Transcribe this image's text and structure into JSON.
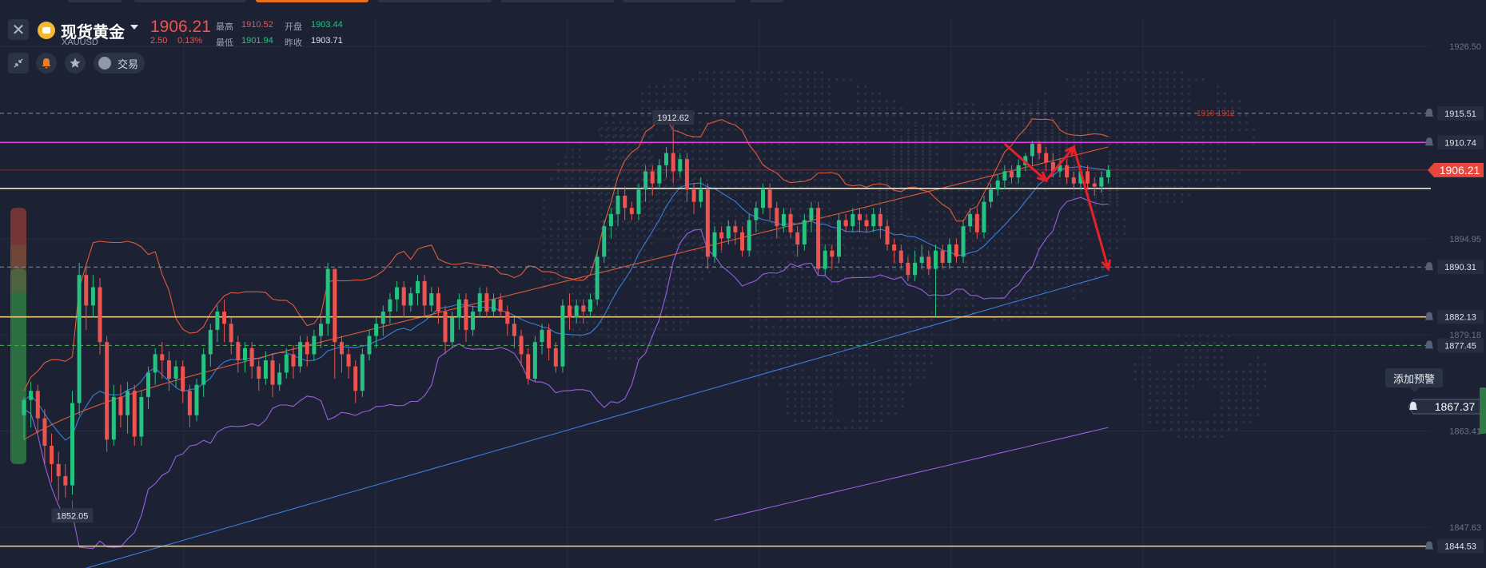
{
  "header": {
    "name": "现货黄金",
    "code": "XAUUSD",
    "price": "1906.21",
    "change": "2.50",
    "change_pct": "0.13%",
    "high_label": "最高",
    "high": "1910.52",
    "open_label": "开盘",
    "open": "1903.44",
    "low_label": "最低",
    "low": "1901.94",
    "prev_close_label": "昨收",
    "prev_close": "1903.71",
    "trade_label": "交易"
  },
  "alert": {
    "label": "添加预警",
    "price": "1867.37"
  },
  "colors": {
    "up": "#26c281",
    "down": "#ef5350",
    "magenta": "#e040e0",
    "gold": "#f3c77a",
    "cream": "#f0e6b8",
    "ma_red": "#e05a3c",
    "ma_blue": "#3d7dd8",
    "ma_purple": "#9a5fe0",
    "bg": "#1c2233"
  },
  "chart_data": {
    "type": "candlestick",
    "symbol": "XAUUSD",
    "ylim": [
      1840,
      1930
    ],
    "y_ticks": [
      "1926.50",
      "1894.95",
      "1879.18",
      "1863.41",
      "1847.63"
    ],
    "price_lines": [
      {
        "value": 1915.51,
        "label": "1915.51",
        "style": "dashed",
        "color": "#8a90a0",
        "alert": true
      },
      {
        "value": 1910.74,
        "label": "1910.74",
        "style": "solid",
        "color": "#e040e0",
        "alert": true
      },
      {
        "value": 1906.21,
        "label": "1906.21",
        "style": "solid",
        "color": "#ef5350",
        "alert": false,
        "current": true
      },
      {
        "value": 1903.2,
        "label": "",
        "style": "solid",
        "color": "#f0e6b8",
        "alert": false
      },
      {
        "value": 1890.31,
        "label": "1890.31",
        "style": "dashed",
        "color": "#8a90a0",
        "alert": true
      },
      {
        "value": 1882.13,
        "label": "1882.13",
        "style": "solid",
        "color": "#f3c77a",
        "alert": true
      },
      {
        "value": 1877.45,
        "label": "1877.45",
        "style": "dashed",
        "color": "#4caf50",
        "alert": true
      },
      {
        "value": 1844.53,
        "label": "1844.53",
        "style": "solid",
        "color": "#f3c77a",
        "alert": true
      }
    ],
    "annotations": [
      {
        "type": "price_tag",
        "label": "1912.62",
        "value": 1912.62,
        "bar": 94
      },
      {
        "type": "price_tag",
        "label": "1852.05",
        "value": 1852.05,
        "bar": 7
      },
      {
        "type": "zone_label",
        "label": "1910-1912",
        "value": 1915.5
      }
    ],
    "candles": [
      [
        1866.0,
        1868.5,
        1862.0,
        1869.0
      ],
      [
        1868.5,
        1870.0,
        1864.0,
        1871.5
      ],
      [
        1870.0,
        1865.5,
        1863.0,
        1871.0
      ],
      [
        1865.5,
        1861.0,
        1858.0,
        1867.0
      ],
      [
        1861.0,
        1858.0,
        1855.0,
        1863.0
      ],
      [
        1858.0,
        1856.0,
        1852.05,
        1860.0
      ],
      [
        1856.0,
        1854.5,
        1852.5,
        1858.0
      ],
      [
        1854.5,
        1868.0,
        1853.0,
        1870.0
      ],
      [
        1868.0,
        1889.0,
        1866.0,
        1891.0
      ],
      [
        1889.0,
        1884.0,
        1880.0,
        1890.5
      ],
      [
        1884.0,
        1887.0,
        1882.0,
        1889.0
      ],
      [
        1887.0,
        1878.0,
        1876.0,
        1888.5
      ],
      [
        1878.0,
        1862.0,
        1860.0,
        1879.0
      ],
      [
        1862.0,
        1869.0,
        1861.0,
        1871.0
      ],
      [
        1869.0,
        1866.0,
        1864.0,
        1871.0
      ],
      [
        1866.0,
        1870.0,
        1863.0,
        1871.5
      ],
      [
        1870.0,
        1862.5,
        1861.0,
        1871.0
      ],
      [
        1862.5,
        1869.0,
        1861.0,
        1870.0
      ],
      [
        1869.0,
        1873.0,
        1867.0,
        1874.0
      ],
      [
        1873.0,
        1876.0,
        1871.0,
        1877.0
      ],
      [
        1876.0,
        1875.0,
        1872.0,
        1878.0
      ],
      [
        1875.0,
        1872.0,
        1870.0,
        1876.5
      ],
      [
        1872.0,
        1874.0,
        1870.5,
        1875.0
      ],
      [
        1874.0,
        1870.0,
        1868.0,
        1875.0
      ],
      [
        1870.0,
        1866.0,
        1864.0,
        1871.0
      ],
      [
        1866.0,
        1871.0,
        1865.0,
        1872.0
      ],
      [
        1871.0,
        1876.0,
        1869.0,
        1877.0
      ],
      [
        1876.0,
        1880.0,
        1874.0,
        1881.0
      ],
      [
        1880.0,
        1883.0,
        1878.0,
        1884.0
      ],
      [
        1883.0,
        1881.0,
        1878.0,
        1885.0
      ],
      [
        1881.0,
        1878.0,
        1876.0,
        1882.0
      ],
      [
        1878.0,
        1875.0,
        1873.0,
        1879.0
      ],
      [
        1875.0,
        1877.0,
        1873.0,
        1878.0
      ],
      [
        1877.0,
        1874.0,
        1872.0,
        1878.0
      ],
      [
        1874.0,
        1872.0,
        1870.0,
        1875.0
      ],
      [
        1872.0,
        1875.0,
        1871.0,
        1876.5
      ],
      [
        1875.0,
        1871.0,
        1869.0,
        1876.0
      ],
      [
        1871.0,
        1873.0,
        1870.0,
        1874.5
      ],
      [
        1873.0,
        1876.0,
        1872.0,
        1877.0
      ],
      [
        1876.0,
        1874.0,
        1872.0,
        1877.5
      ],
      [
        1874.0,
        1878.0,
        1873.0,
        1879.0
      ],
      [
        1878.0,
        1876.0,
        1874.0,
        1879.0
      ],
      [
        1876.0,
        1879.0,
        1875.0,
        1880.0
      ],
      [
        1879.0,
        1881.0,
        1877.0,
        1882.0
      ],
      [
        1881.0,
        1890.0,
        1879.0,
        1891.0
      ],
      [
        1890.0,
        1878.0,
        1872.0,
        1890.0
      ],
      [
        1878.0,
        1876.0,
        1873.0,
        1879.0
      ],
      [
        1876.0,
        1874.0,
        1872.0,
        1877.0
      ],
      [
        1874.0,
        1870.0,
        1868.0,
        1875.0
      ],
      [
        1870.0,
        1876.0,
        1869.0,
        1877.0
      ],
      [
        1876.0,
        1879.0,
        1875.0,
        1880.0
      ],
      [
        1879.0,
        1881.0,
        1877.0,
        1882.0
      ],
      [
        1881.0,
        1883.0,
        1879.0,
        1884.0
      ],
      [
        1883.0,
        1885.0,
        1881.0,
        1886.0
      ],
      [
        1885.0,
        1887.0,
        1883.0,
        1888.0
      ],
      [
        1887.0,
        1884.0,
        1882.0,
        1888.0
      ],
      [
        1884.0,
        1886.0,
        1883.0,
        1887.0
      ],
      [
        1886.0,
        1888.0,
        1884.0,
        1889.0
      ],
      [
        1888.0,
        1884.0,
        1882.0,
        1889.0
      ],
      [
        1884.0,
        1886.0,
        1883.0,
        1887.0
      ],
      [
        1886.0,
        1883.0,
        1881.0,
        1887.0
      ],
      [
        1883.0,
        1878.0,
        1876.0,
        1884.0
      ],
      [
        1878.0,
        1882.0,
        1877.0,
        1883.0
      ],
      [
        1882.0,
        1885.0,
        1880.0,
        1886.0
      ],
      [
        1885.0,
        1880.0,
        1878.0,
        1886.0
      ],
      [
        1880.0,
        1883.0,
        1879.0,
        1884.0
      ],
      [
        1883.0,
        1886.0,
        1882.0,
        1887.0
      ],
      [
        1886.0,
        1883.0,
        1882.0,
        1887.0
      ],
      [
        1883.0,
        1885.0,
        1882.0,
        1886.0
      ],
      [
        1885.0,
        1883.0,
        1882.0,
        1886.0
      ],
      [
        1883.0,
        1881.0,
        1879.0,
        1884.0
      ],
      [
        1881.0,
        1879.0,
        1877.0,
        1882.0
      ],
      [
        1879.0,
        1876.0,
        1874.0,
        1880.0
      ],
      [
        1876.0,
        1872.0,
        1871.0,
        1877.0
      ],
      [
        1872.0,
        1878.0,
        1871.5,
        1879.0
      ],
      [
        1878.0,
        1880.0,
        1876.0,
        1881.0
      ],
      [
        1880.0,
        1877.0,
        1875.0,
        1881.0
      ],
      [
        1877.0,
        1874.0,
        1873.0,
        1878.0
      ],
      [
        1874.0,
        1884.0,
        1873.0,
        1885.0
      ],
      [
        1884.0,
        1882.0,
        1880.0,
        1886.0
      ],
      [
        1882.0,
        1884.0,
        1881.0,
        1885.0
      ],
      [
        1884.0,
        1883.0,
        1881.0,
        1885.0
      ],
      [
        1883.0,
        1885.0,
        1882.0,
        1886.0
      ],
      [
        1885.0,
        1892.0,
        1884.0,
        1893.0
      ],
      [
        1892.0,
        1897.0,
        1891.0,
        1898.0
      ],
      [
        1897.0,
        1899.0,
        1895.0,
        1900.0
      ],
      [
        1899.0,
        1902.0,
        1897.0,
        1903.0
      ],
      [
        1902.0,
        1900.0,
        1898.0,
        1903.5
      ],
      [
        1900.0,
        1899.0,
        1898.0,
        1901.0
      ],
      [
        1899.0,
        1903.0,
        1898.0,
        1904.0
      ],
      [
        1903.0,
        1906.0,
        1901.0,
        1907.0
      ],
      [
        1906.0,
        1904.0,
        1902.0,
        1907.0
      ],
      [
        1904.0,
        1907.0,
        1903.0,
        1908.0
      ],
      [
        1907.0,
        1909.0,
        1905.0,
        1910.0
      ],
      [
        1909.0,
        1906.0,
        1904.0,
        1912.62
      ],
      [
        1906.0,
        1908.0,
        1905.0,
        1909.0
      ],
      [
        1908.0,
        1903.0,
        1901.0,
        1909.0
      ],
      [
        1903.0,
        1901.0,
        1899.0,
        1904.0
      ],
      [
        1901.0,
        1903.0,
        1900.0,
        1905.0
      ],
      [
        1903.0,
        1892.0,
        1890.0,
        1904.0
      ],
      [
        1892.0,
        1896.0,
        1891.0,
        1897.0
      ],
      [
        1896.0,
        1895.0,
        1893.0,
        1897.0
      ],
      [
        1895.0,
        1897.0,
        1894.0,
        1898.0
      ],
      [
        1897.0,
        1896.0,
        1894.0,
        1898.0
      ],
      [
        1896.0,
        1893.0,
        1892.0,
        1897.0
      ],
      [
        1893.0,
        1898.0,
        1892.0,
        1899.0
      ],
      [
        1898.0,
        1900.0,
        1896.0,
        1901.0
      ],
      [
        1900.0,
        1903.0,
        1899.0,
        1904.0
      ],
      [
        1903.0,
        1900.0,
        1898.0,
        1904.0
      ],
      [
        1900.0,
        1897.0,
        1895.0,
        1901.0
      ],
      [
        1897.0,
        1899.0,
        1896.0,
        1900.0
      ],
      [
        1899.0,
        1896.0,
        1895.0,
        1900.0
      ],
      [
        1896.0,
        1894.0,
        1892.0,
        1897.0
      ],
      [
        1894.0,
        1898.0,
        1893.0,
        1899.0
      ],
      [
        1898.0,
        1900.0,
        1896.0,
        1901.0
      ],
      [
        1900.0,
        1890.0,
        1889.0,
        1901.0
      ],
      [
        1890.0,
        1893.0,
        1889.0,
        1894.0
      ],
      [
        1893.0,
        1892.0,
        1890.0,
        1894.0
      ],
      [
        1892.0,
        1898.0,
        1891.0,
        1899.0
      ],
      [
        1898.0,
        1897.0,
        1896.0,
        1899.0
      ],
      [
        1897.0,
        1899.0,
        1896.0,
        1900.0
      ],
      [
        1899.0,
        1898.0,
        1896.0,
        1900.0
      ],
      [
        1898.0,
        1897.0,
        1896.0,
        1899.0
      ],
      [
        1897.0,
        1899.0,
        1896.0,
        1900.0
      ],
      [
        1899.0,
        1897.0,
        1895.0,
        1900.0
      ],
      [
        1897.0,
        1894.0,
        1893.0,
        1898.0
      ],
      [
        1894.0,
        1893.0,
        1891.0,
        1895.0
      ],
      [
        1893.0,
        1891.0,
        1890.0,
        1894.0
      ],
      [
        1891.0,
        1889.0,
        1888.0,
        1892.0
      ],
      [
        1889.0,
        1891.0,
        1888.0,
        1893.0
      ],
      [
        1891.0,
        1892.0,
        1890.0,
        1894.0
      ],
      [
        1892.0,
        1890.0,
        1889.0,
        1893.0
      ],
      [
        1890.0,
        1893.0,
        1882.13,
        1894.0
      ],
      [
        1893.0,
        1891.0,
        1890.0,
        1894.0
      ],
      [
        1891.0,
        1894.0,
        1890.0,
        1895.0
      ],
      [
        1894.0,
        1892.0,
        1891.0,
        1895.0
      ],
      [
        1892.0,
        1897.0,
        1891.0,
        1898.0
      ],
      [
        1897.0,
        1899.0,
        1896.0,
        1900.0
      ],
      [
        1899.0,
        1896.0,
        1895.0,
        1900.0
      ],
      [
        1896.0,
        1901.0,
        1895.0,
        1902.0
      ],
      [
        1901.0,
        1903.0,
        1900.0,
        1904.0
      ],
      [
        1903.0,
        1904.5,
        1902.0,
        1905.5
      ],
      [
        1904.5,
        1906.0,
        1903.0,
        1907.0
      ],
      [
        1906.0,
        1905.0,
        1904.0,
        1907.0
      ],
      [
        1905.0,
        1907.0,
        1904.0,
        1908.0
      ],
      [
        1907.0,
        1908.5,
        1906.0,
        1909.0
      ],
      [
        1908.5,
        1910.5,
        1907.0,
        1911.0
      ],
      [
        1910.5,
        1909.0,
        1908.0,
        1911.0
      ],
      [
        1909.0,
        1907.5,
        1906.0,
        1910.0
      ],
      [
        1907.5,
        1906.0,
        1905.0,
        1909.0
      ],
      [
        1906.0,
        1907.0,
        1905.0,
        1908.0
      ],
      [
        1907.0,
        1905.0,
        1904.0,
        1908.0
      ],
      [
        1905.0,
        1904.0,
        1903.0,
        1906.0
      ],
      [
        1904.0,
        1906.0,
        1903.0,
        1907.0
      ],
      [
        1906.0,
        1904.0,
        1903.0,
        1907.0
      ],
      [
        1904.0,
        1903.5,
        1902.0,
        1905.0
      ],
      [
        1903.5,
        1905.0,
        1902.5,
        1906.0
      ],
      [
        1905.0,
        1906.21,
        1904.0,
        1907.0
      ]
    ],
    "arrows": [
      {
        "from": [
          142,
          1910.5
        ],
        "to": [
          148,
          1904.5
        ]
      },
      {
        "from": [
          148,
          1904.5
        ],
        "to": [
          152,
          1910.0
        ]
      },
      {
        "from": [
          152,
          1910.0
        ],
        "to": [
          157,
          1890.0
        ]
      }
    ]
  }
}
